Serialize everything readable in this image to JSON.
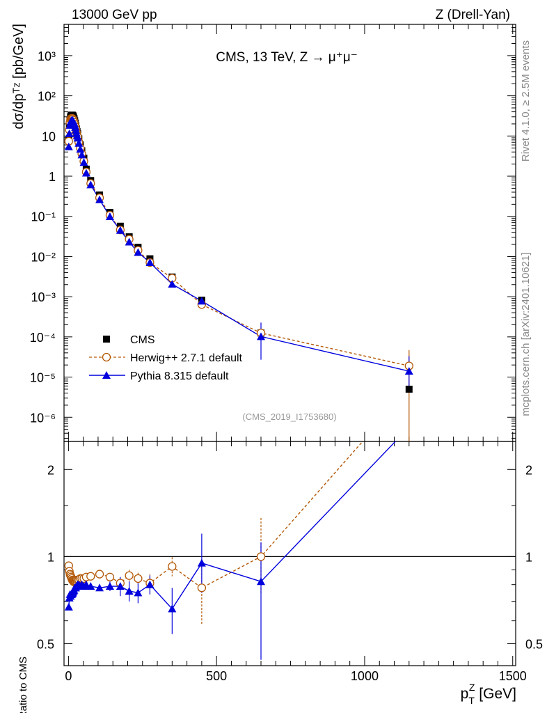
{
  "header": {
    "left": "13000 GeV pp",
    "right": "Z (Drell-Yan)"
  },
  "side": {
    "rivet": "Rivet 4.1.0, ≥ 2.5M events",
    "mcplots": "mcplots.cern.ch [arXiv:2401.10621]"
  },
  "main_panel": {
    "title": "CMS, 13 TeV, Z → μ⁺μ⁻",
    "analysis_id": "(CMS_2019_I1753680)",
    "y_label": "dσ/dpᵀᶻ [pb/GeV]"
  },
  "ratio_panel": {
    "y_label": "Ratio to CMS"
  },
  "legend": {
    "position": "lower-left",
    "entries": [
      {
        "label": "CMS",
        "color": "#000000",
        "marker": "filled-square"
      },
      {
        "label": "Herwig++ 2.7.1 default",
        "color": "#b35806",
        "marker": "open-circle",
        "line": "dashed"
      },
      {
        "label": "Pythia 8.315 default",
        "color": "#0000dd",
        "marker": "filled-triangle",
        "line": "solid"
      }
    ]
  },
  "chart_data": [
    {
      "type": "scatter",
      "panel": "main",
      "title": "CMS, 13 TeV, Z → μ⁺μ⁻",
      "xlabel": "p_T^Z [GeV]",
      "ylabel": "dσ/dp_T^Z [pb/GeV]",
      "yscale": "log",
      "xlim": [
        -15,
        1510
      ],
      "ylim": [
        2.5e-07,
        6000
      ],
      "x_ticks": [
        0,
        500,
        1000,
        1500
      ],
      "y_tick_labels": [
        "10⁻⁶",
        "10⁻⁵",
        "10⁻⁴",
        "10⁻³",
        "10⁻²",
        "10⁻¹",
        "1",
        "10",
        "10²",
        "10³"
      ],
      "y_ticks": [
        1e-06,
        1e-05,
        0.0001,
        0.001,
        0.01,
        0.1,
        1,
        10,
        100,
        1000
      ],
      "series": [
        {
          "name": "CMS",
          "x": [
            1,
            3,
            5,
            7,
            9,
            11,
            13,
            15,
            17,
            19,
            21,
            23,
            25,
            27,
            29,
            31,
            35,
            40,
            45,
            52,
            60,
            75,
            105,
            140,
            175,
            205,
            235,
            275,
            350,
            450,
            650,
            1150
          ],
          "y": [
            8,
            16,
            25,
            30,
            32,
            33,
            33,
            32,
            30,
            27,
            24,
            21,
            18,
            15,
            13,
            11.5,
            8.5,
            6.0,
            4.3,
            2.8,
            1.5,
            0.78,
            0.34,
            0.125,
            0.057,
            0.031,
            0.017,
            0.0088,
            0.0031,
            0.00082,
            0.000125,
            5e-06
          ]
        },
        {
          "name": "Herwig++ 2.7.1 default",
          "x": [
            1,
            3,
            5,
            7,
            9,
            11,
            13,
            15,
            17,
            19,
            21,
            23,
            25,
            27,
            29,
            31,
            35,
            40,
            45,
            52,
            60,
            75,
            105,
            140,
            175,
            205,
            235,
            275,
            350,
            450,
            650,
            1150
          ],
          "y": [
            7.4,
            14.2,
            21.7,
            25.7,
            27.2,
            27.6,
            27.4,
            26.4,
            24.6,
            22.1,
            19.6,
            17.2,
            14.8,
            12.4,
            10.7,
            9.5,
            7.0,
            5.0,
            3.6,
            2.35,
            1.27,
            0.66,
            0.29,
            0.107,
            0.046,
            0.027,
            0.0143,
            0.0071,
            0.0029,
            0.00064,
            0.000125,
            1.9e-05
          ],
          "yerr_upper": [
            0,
            0,
            0,
            0,
            0,
            0,
            0,
            0,
            0,
            0,
            0,
            0,
            0,
            0,
            0,
            0,
            0,
            0,
            0,
            0,
            0,
            0,
            0,
            0,
            0,
            0,
            0,
            0,
            0,
            0.00011,
            2.5e-05,
            2.8e-05
          ]
        },
        {
          "name": "Pythia 8.315 default",
          "x": [
            1,
            3,
            5,
            7,
            9,
            11,
            13,
            15,
            17,
            19,
            21,
            23,
            25,
            27,
            29,
            31,
            35,
            40,
            45,
            52,
            60,
            75,
            105,
            140,
            175,
            205,
            235,
            275,
            350,
            450,
            650,
            1150
          ],
          "y": [
            5.4,
            11.5,
            18.5,
            22.0,
            23.6,
            24.5,
            24.6,
            24.0,
            22.8,
            20.7,
            18.7,
            16.4,
            14.0,
            11.8,
            10.1,
            8.9,
            6.6,
            4.7,
            3.4,
            2.2,
            1.2,
            0.61,
            0.26,
            0.099,
            0.045,
            0.023,
            0.0127,
            0.0071,
            0.00205,
            0.00078,
            0.000102,
            1.4e-05
          ],
          "yerr_upper": [
            0,
            0,
            0,
            0,
            0,
            0,
            0,
            0,
            0,
            0,
            0,
            0,
            0,
            0,
            0,
            0,
            0,
            0,
            0,
            0,
            0,
            0,
            0,
            0,
            0,
            0,
            0,
            0,
            0,
            0,
            0.000125,
            1.9e-05
          ],
          "yerr_lower": [
            0,
            0,
            0,
            0,
            0,
            0,
            0,
            0,
            0,
            0,
            0,
            0,
            0,
            0,
            0,
            0,
            0,
            0,
            0,
            0,
            0,
            0,
            0,
            0,
            0,
            0,
            0,
            0,
            0,
            0,
            7.5e-05,
            9e-06
          ]
        }
      ]
    },
    {
      "type": "line",
      "panel": "ratio",
      "xlabel": "p_T^Z [GeV]",
      "ylabel": "Ratio to CMS",
      "yscale": "log",
      "xlim": [
        -15,
        1510
      ],
      "ylim": [
        0.42,
        2.5
      ],
      "x_ticks": [
        0,
        500,
        1000,
        1500
      ],
      "x_tick_labels": [
        "0",
        "500",
        "1000",
        "1500"
      ],
      "y_ticks": [
        0.5,
        1,
        2
      ],
      "y_tick_labels": [
        "0.5",
        "1",
        "2"
      ],
      "reference_line": 1,
      "series": [
        {
          "name": "Herwig++ 2.7.1 default",
          "x": [
            1,
            3,
            5,
            7,
            9,
            11,
            13,
            15,
            17,
            19,
            21,
            23,
            25,
            27,
            29,
            31,
            35,
            40,
            45,
            52,
            60,
            75,
            105,
            140,
            175,
            205,
            235,
            275,
            350,
            450,
            650,
            1150
          ],
          "y": [
            0.93,
            0.89,
            0.87,
            0.86,
            0.85,
            0.84,
            0.83,
            0.825,
            0.82,
            0.82,
            0.815,
            0.82,
            0.82,
            0.83,
            0.82,
            0.83,
            0.83,
            0.84,
            0.84,
            0.84,
            0.85,
            0.855,
            0.87,
            0.85,
            0.81,
            0.86,
            0.84,
            0.81,
            0.925,
            0.78,
            1.0,
            3.8
          ],
          "yerr_low": [
            0,
            0,
            0,
            0,
            0,
            0,
            0,
            0,
            0,
            0,
            0,
            0,
            0,
            0,
            0,
            0,
            0,
            0,
            0,
            0,
            0,
            0,
            0,
            0,
            0.03,
            0.04,
            0.04,
            0.06,
            0.07,
            0.2,
            0.26,
            0
          ],
          "yerr_high": [
            0,
            0,
            0,
            0,
            0,
            0,
            0,
            0,
            0,
            0,
            0,
            0,
            0,
            0,
            0,
            0,
            0,
            0,
            0,
            0,
            0,
            0,
            0,
            0,
            0.03,
            0.04,
            0.04,
            0.06,
            0.07,
            0.2,
            0.36,
            0
          ]
        },
        {
          "name": "Pythia 8.315 default",
          "x": [
            1,
            3,
            5,
            7,
            9,
            11,
            13,
            15,
            17,
            19,
            21,
            23,
            25,
            27,
            29,
            31,
            35,
            40,
            45,
            52,
            60,
            75,
            105,
            140,
            175,
            205,
            235,
            275,
            350,
            450,
            650,
            1150
          ],
          "y": [
            0.67,
            0.72,
            0.74,
            0.73,
            0.74,
            0.74,
            0.745,
            0.75,
            0.76,
            0.765,
            0.78,
            0.78,
            0.78,
            0.79,
            0.79,
            0.8,
            0.8,
            0.79,
            0.8,
            0.79,
            0.8,
            0.79,
            0.78,
            0.79,
            0.79,
            0.76,
            0.75,
            0.8,
            0.66,
            0.95,
            0.82,
            2.8
          ],
          "yerr_low": [
            0,
            0,
            0,
            0,
            0,
            0,
            0,
            0,
            0,
            0,
            0,
            0,
            0,
            0,
            0,
            0,
            0,
            0,
            0,
            0,
            0,
            0,
            0,
            0.03,
            0.06,
            0.06,
            0.06,
            0.06,
            0.12,
            0.2,
            0.38,
            0
          ],
          "yerr_high": [
            0,
            0,
            0,
            0,
            0,
            0,
            0,
            0,
            0,
            0,
            0,
            0,
            0,
            0,
            0,
            0,
            0,
            0,
            0,
            0,
            0,
            0,
            0,
            0.03,
            0.06,
            0.06,
            0.06,
            0.06,
            0.12,
            0.25,
            0.3,
            0
          ]
        }
      ]
    }
  ]
}
